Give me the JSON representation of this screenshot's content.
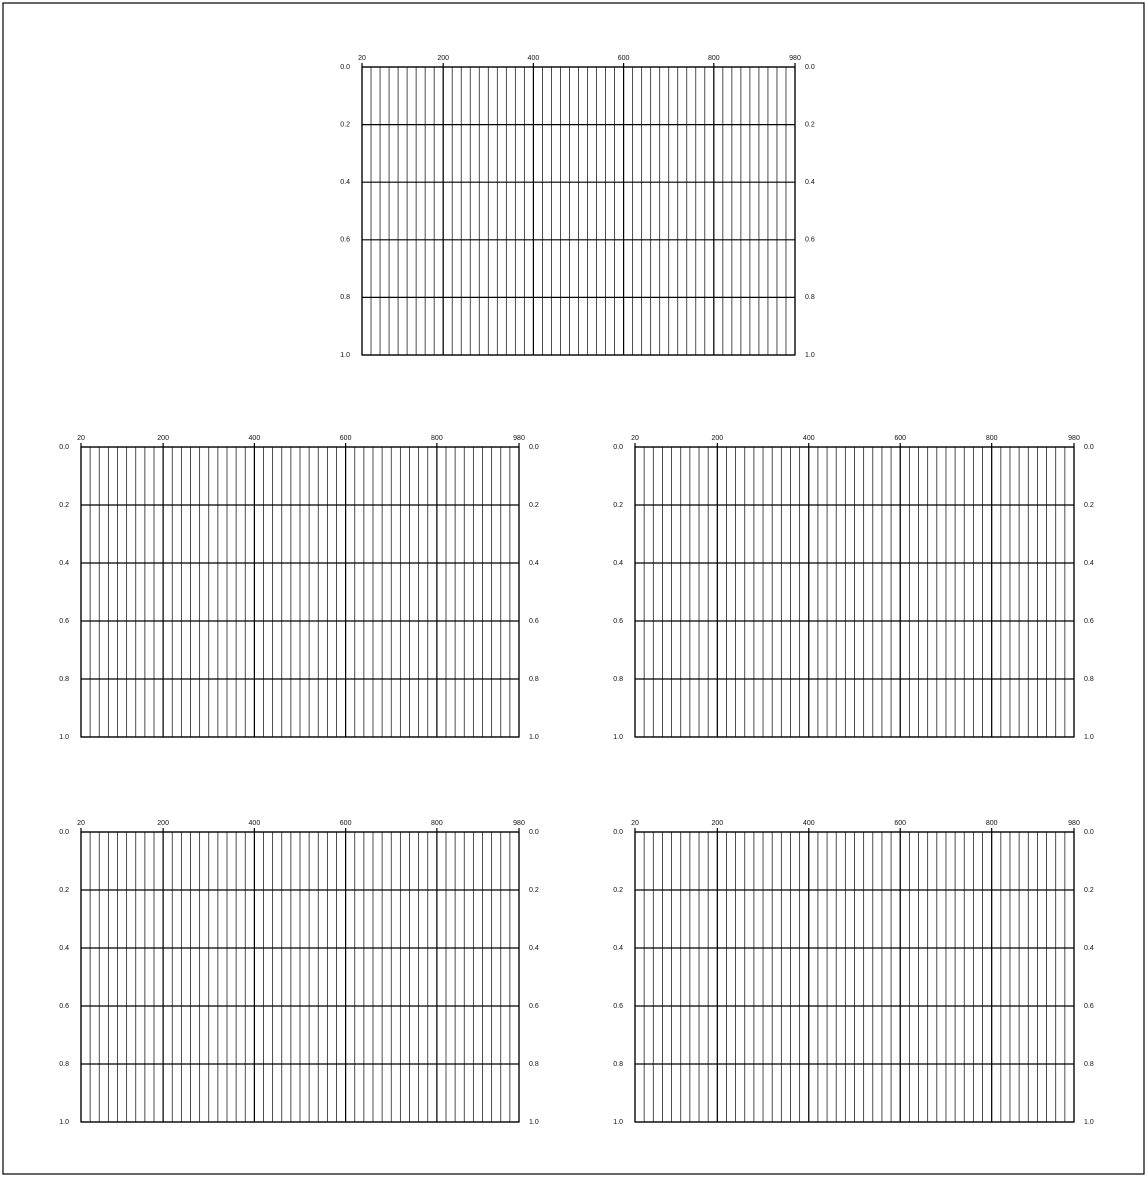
{
  "chart_data": [
    {
      "type": "seismic",
      "xlim": [
        20,
        980
      ],
      "xticks": [
        20,
        200,
        400,
        600,
        800,
        980
      ],
      "ylim": [
        0,
        1
      ],
      "yticks": [
        {
          "value": 0,
          "label": "0.0"
        },
        {
          "value": 0.2,
          "label": "0.2"
        },
        {
          "value": 0.4,
          "label": "0.4"
        },
        {
          "value": 0.6,
          "label": "0.6"
        },
        {
          "value": 0.8,
          "label": "0.8"
        },
        {
          "value": 1,
          "label": "1.0"
        }
      ],
      "grid": true
    },
    {
      "type": "seismic",
      "xlim": [
        20,
        980
      ],
      "xticks": [
        20,
        200,
        400,
        600,
        800,
        980
      ],
      "ylim": [
        0,
        1
      ],
      "yticks": [
        {
          "value": 0,
          "label": "0.0"
        },
        {
          "value": 0.2,
          "label": "0.2"
        },
        {
          "value": 0.4,
          "label": "0.4"
        },
        {
          "value": 0.6,
          "label": "0.6"
        },
        {
          "value": 0.8,
          "label": "0.8"
        },
        {
          "value": 1,
          "label": "1.0"
        }
      ],
      "grid": true
    },
    {
      "type": "seismic",
      "xlim": [
        20,
        980
      ],
      "xticks": [
        20,
        200,
        400,
        600,
        800,
        980
      ],
      "ylim": [
        0,
        1
      ],
      "yticks": [
        {
          "value": 0,
          "label": "0.0"
        },
        {
          "value": 0.2,
          "label": "0.2"
        },
        {
          "value": 0.4,
          "label": "0.4"
        },
        {
          "value": 0.6,
          "label": "0.6"
        },
        {
          "value": 0.8,
          "label": "0.8"
        },
        {
          "value": 1,
          "label": "1.0"
        }
      ],
      "grid": true
    },
    {
      "type": "seismic",
      "xlim": [
        20,
        980
      ],
      "xticks": [
        20,
        200,
        400,
        600,
        800,
        980
      ],
      "ylim": [
        0,
        1
      ],
      "yticks": [
        {
          "value": 0,
          "label": "0.0"
        },
        {
          "value": 0.2,
          "label": "0.2"
        },
        {
          "value": 0.4,
          "label": "0.4"
        },
        {
          "value": 0.6,
          "label": "0.6"
        },
        {
          "value": 0.8,
          "label": "0.8"
        },
        {
          "value": 1,
          "label": "1.0"
        }
      ],
      "grid": true
    },
    {
      "type": "seismic",
      "xlim": [
        20,
        980
      ],
      "xticks": [
        20,
        200,
        400,
        600,
        800,
        980
      ],
      "ylim": [
        0,
        1
      ],
      "yticks": [
        {
          "value": 0,
          "label": "0.0"
        },
        {
          "value": 0.2,
          "label": "0.2"
        },
        {
          "value": 0.4,
          "label": "0.4"
        },
        {
          "value": 0.6,
          "label": "0.6"
        },
        {
          "value": 0.8,
          "label": "0.8"
        },
        {
          "value": 1,
          "label": "1.0"
        }
      ],
      "grid": true
    }
  ]
}
